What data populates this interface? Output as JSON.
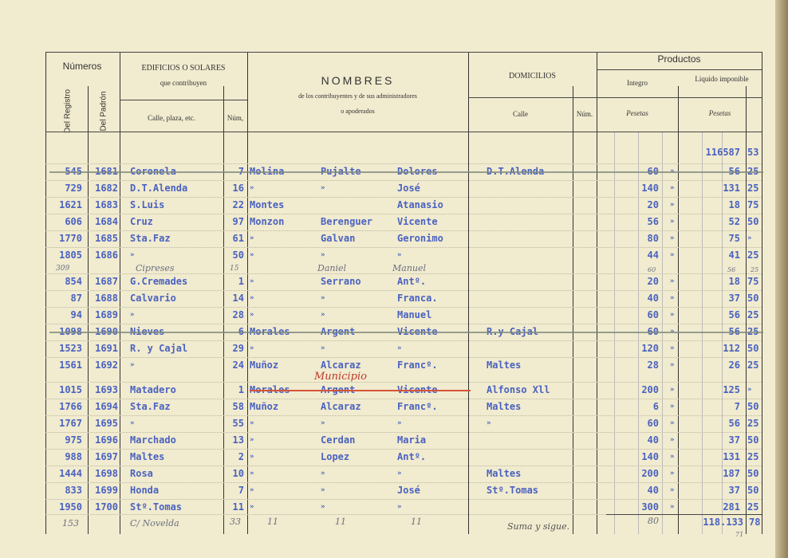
{
  "header": {
    "numeros": "Números",
    "del_registro": "Del Registro",
    "del_padron": "Del Padrón",
    "edificios": "EDIFICIOS O SOLARES",
    "que_contribuyen": "que contribuyen",
    "calle_plaza": "Calle, plaza, etc.",
    "num": "Núm,",
    "nombres": "NOMBRES",
    "nombres_sub1": "de los contribuyentes y de sus administradores",
    "nombres_sub2": "o apoderados",
    "domicilios": "DOMICILIOS",
    "calle": "Calle",
    "num2": "Núm.",
    "productos": "Productos",
    "integro": "Integro",
    "liquido": "Liquido imponible",
    "pesetas": "Pesetas"
  },
  "opening_balance": {
    "pesetas": "116587",
    "centimos": "53"
  },
  "rows": [
    {
      "reg": "545",
      "pad": "1681",
      "calle": "Coronela",
      "num": "7",
      "n1": "Molina",
      "n2": "Pujalte",
      "n3": "Dolores",
      "dom": "D.T.Alenda",
      "int": "60",
      "int_c": "»",
      "liq": "56",
      "liq_c": "25",
      "struck": true
    },
    {
      "reg": "729",
      "pad": "1682",
      "calle": "D.T.Alenda",
      "num": "16",
      "n1": "»",
      "n2": "»",
      "n3": "José",
      "dom": "",
      "int": "140",
      "int_c": "»",
      "liq": "131",
      "liq_c": "25"
    },
    {
      "reg": "1621",
      "pad": "1683",
      "calle": "S.Luis",
      "num": "22",
      "n1": "Montes",
      "n2": "",
      "n3": "Atanasio",
      "dom": "",
      "int": "20",
      "int_c": "»",
      "liq": "18",
      "liq_c": "75"
    },
    {
      "reg": "606",
      "pad": "1684",
      "calle": "Cruz",
      "num": "97",
      "n1": "Monzon",
      "n2": "Berenguer",
      "n3": "Vicente",
      "dom": "",
      "int": "56",
      "int_c": "»",
      "liq": "52",
      "liq_c": "50"
    },
    {
      "reg": "1770",
      "pad": "1685",
      "calle": "Sta.Faz",
      "num": "61",
      "n1": "»",
      "n2": "Galvan",
      "n3": "Geronimo",
      "dom": "",
      "int": "80",
      "int_c": "»",
      "liq": "75",
      "liq_c": "»"
    },
    {
      "reg": "1805",
      "pad": "1686",
      "calle": "»",
      "num": "50",
      "n1": "»",
      "n2": "»",
      "n3": "»",
      "dom": "",
      "int": "44",
      "int_c": "»",
      "liq": "41",
      "liq_c": "25"
    },
    {
      "reg": "854",
      "pad": "1687",
      "calle": "G.Cremades",
      "num": "1",
      "n1": "»",
      "n2": "Serrano",
      "n3": "Antº.",
      "dom": "",
      "int": "20",
      "int_c": "»",
      "liq": "18",
      "liq_c": "75"
    },
    {
      "reg": "87",
      "pad": "1688",
      "calle": "Calvario",
      "num": "14",
      "n1": "»",
      "n2": "»",
      "n3": "Franca.",
      "dom": "",
      "int": "40",
      "int_c": "»",
      "liq": "37",
      "liq_c": "50"
    },
    {
      "reg": "94",
      "pad": "1689",
      "calle": "»",
      "num": "28",
      "n1": "»",
      "n2": "»",
      "n3": "Manuel",
      "dom": "",
      "int": "60",
      "int_c": "»",
      "liq": "56",
      "liq_c": "25"
    },
    {
      "reg": "1098",
      "pad": "1690",
      "calle": "Nieves",
      "num": "6",
      "n1": "Morales",
      "n2": "Argent",
      "n3": "Vicente",
      "dom": "R.y Cajal",
      "int": "60",
      "int_c": "»",
      "liq": "56",
      "liq_c": "25",
      "struck": true
    },
    {
      "reg": "1523",
      "pad": "1691",
      "calle": "R. y Cajal",
      "num": "29",
      "n1": "»",
      "n2": "»",
      "n3": "»",
      "dom": "",
      "int": "120",
      "int_c": "»",
      "liq": "112",
      "liq_c": "50"
    },
    {
      "reg": "1561",
      "pad": "1692",
      "calle": "»",
      "num": "24",
      "n1": "Muñoz",
      "n2": "Alcaraz",
      "n3": "Francº.",
      "dom": "Maltes",
      "int": "28",
      "int_c": "»",
      "liq": "26",
      "liq_c": "25"
    },
    {
      "reg": "1015",
      "pad": "1693",
      "calle": "Matadero",
      "num": "1",
      "n1": "Morales",
      "n2": "Argent",
      "n3": "Vicente",
      "dom": "Alfonso Xll",
      "int": "200",
      "int_c": "»",
      "liq": "125",
      "liq_c": "»",
      "red": true
    },
    {
      "reg": "1766",
      "pad": "1694",
      "calle": "Sta.Faz",
      "num": "58",
      "n1": "Muñoz",
      "n2": "Alcaraz",
      "n3": "Francº.",
      "dom": "Maltes",
      "int": "6",
      "int_c": "»",
      "liq": "7",
      "liq_c": "50"
    },
    {
      "reg": "1767",
      "pad": "1695",
      "calle": "»",
      "num": "55",
      "n1": "»",
      "n2": "»",
      "n3": "»",
      "dom": "»",
      "int": "60",
      "int_c": "»",
      "liq": "56",
      "liq_c": "25"
    },
    {
      "reg": "975",
      "pad": "1696",
      "calle": "Marchado",
      "num": "13",
      "n1": "»",
      "n2": "Cerdan",
      "n3": "Maria",
      "dom": "",
      "int": "40",
      "int_c": "»",
      "liq": "37",
      "liq_c": "50"
    },
    {
      "reg": "988",
      "pad": "1697",
      "calle": "Maltes",
      "num": "2",
      "n1": "»",
      "n2": "Lopez",
      "n3": "Antº.",
      "dom": "",
      "int": "140",
      "int_c": "»",
      "liq": "131",
      "liq_c": "25"
    },
    {
      "reg": "1444",
      "pad": "1698",
      "calle": "Rosa",
      "num": "10",
      "n1": "»",
      "n2": "»",
      "n3": "»",
      "dom": "Maltes",
      "int": "200",
      "int_c": "»",
      "liq": "187",
      "liq_c": "50"
    },
    {
      "reg": "833",
      "pad": "1699",
      "calle": "Honda",
      "num": "7",
      "n1": "»",
      "n2": "»",
      "n3": "José",
      "dom": "Stº.Tomas",
      "int": "40",
      "int_c": "»",
      "liq": "37",
      "liq_c": "50"
    },
    {
      "reg": "1950",
      "pad": "1700",
      "calle": "Stº.Tomas",
      "num": "11",
      "n1": "»",
      "n2": "»",
      "n3": "»",
      "dom": "",
      "int": "300",
      "int_c": "»",
      "liq": "281",
      "liq_c": "25"
    }
  ],
  "handwritten": {
    "red_note": "Municipio",
    "row_1686_reg": "309",
    "row_1686_calle": "Cipreses",
    "row_1686_num": "15",
    "row_1686_n2": "Daniel",
    "row_1686_n3": "Manuel",
    "row_1686_int": "60",
    "row_1686_liq": "56",
    "row_1686_liq_c": "25",
    "last_reg": "153",
    "last_calle": "C/ Novelda",
    "last_num": "33",
    "last_n1": "11",
    "last_n2": "11",
    "last_n3": "11",
    "last_int": "80",
    "last_liq": "71"
  },
  "footer": {
    "suma": "Suma y sigue.",
    "total_pesetas": "118.133",
    "total_centimos": "78"
  }
}
